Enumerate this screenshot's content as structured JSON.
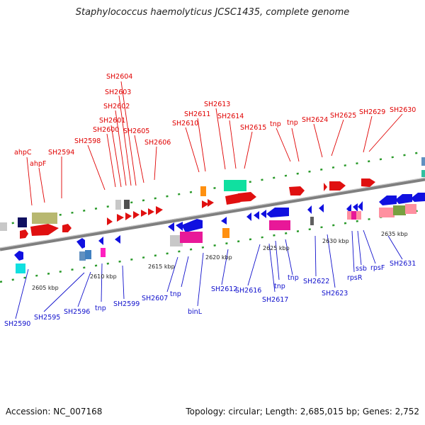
{
  "header": {
    "title": "Staphylococcus haemolyticus JCSC1435, complete genome"
  },
  "footer": {
    "accession": "Accession: NC_007168",
    "summary": "Topology: circular; Length: 2,685,015 bp; Genes: 2,752"
  },
  "colors": {
    "top_label": "#e00000",
    "bottom_label": "#1010cc",
    "backbone": "#888888"
  },
  "top_labels": [
    "ahpC",
    "ahpF",
    "SH2594",
    "SH2598",
    "SH2600",
    "SH2601",
    "SH2602",
    "SH2603",
    "SH2604",
    "SH2605",
    "SH2606",
    "SH2610",
    "SH2611",
    "SH2613",
    "SH2614",
    "SH2615",
    "tnp",
    "tnp",
    "SH2624",
    "SH2625",
    "SH2629",
    "SH2630"
  ],
  "bottom_labels": [
    "SH2590",
    "SH2595",
    "SH2596",
    "tnp",
    "SH2599",
    "SH2607",
    "tnp",
    "binL",
    "SH2612",
    "SH2616",
    "SH2617",
    "tnp",
    "tnp",
    "SH2622",
    "SH2623",
    "rpsR",
    "ssb",
    "rpsF",
    "SH2631"
  ],
  "scale_labels": [
    "2605 kbp",
    "2610 kbp",
    "2615 kbp",
    "2620 kbp",
    "2625 kbp",
    "2630 kbp",
    "2635 kbp"
  ]
}
